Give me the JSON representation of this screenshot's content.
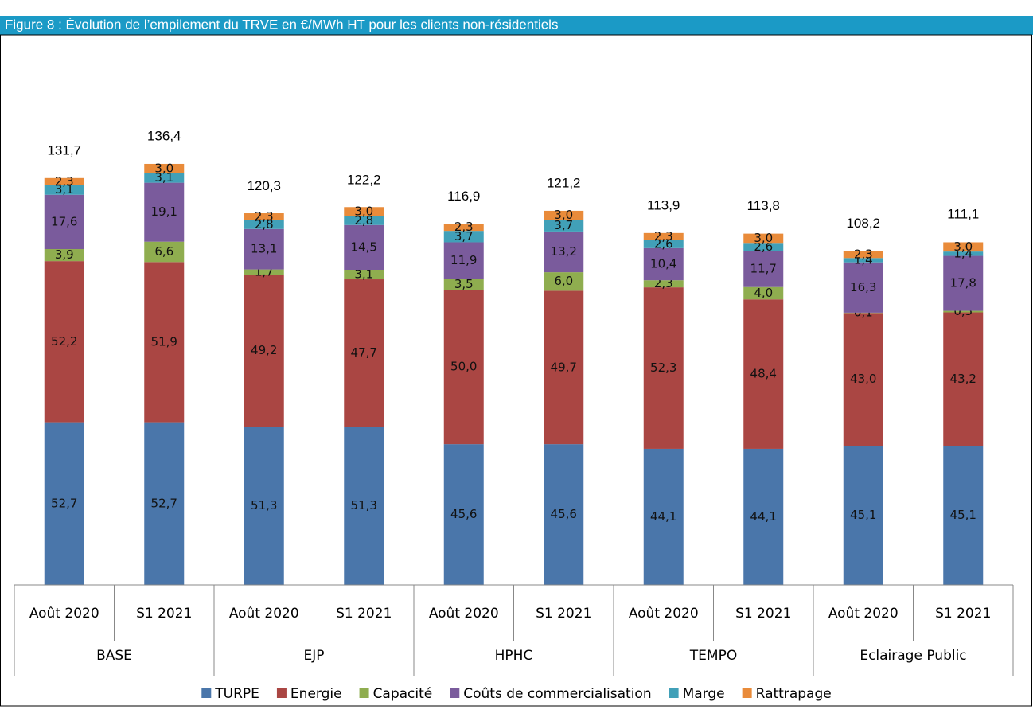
{
  "chart_data": {
    "type": "stacked_bar",
    "title": "Figure 8 : Évolution de l’empilement du TRVE en €/MWh HT pour les clients non-résidentiels",
    "categories": [
      "Août 2020",
      "S1 2021",
      "Août 2020",
      "S1 2021",
      "Août 2020",
      "S1 2021",
      "Août 2020",
      "S1 2021",
      "Août 2020",
      "S1 2021"
    ],
    "groups": [
      "BASE",
      "EJP",
      "HPHC",
      "TEMPO",
      "Eclairage Public"
    ],
    "ylim": [
      0,
      140
    ],
    "series": [
      {
        "name": "TURPE",
        "color": "#4a76aa",
        "values": [
          52.7,
          52.7,
          51.3,
          51.3,
          45.6,
          45.6,
          44.1,
          44.1,
          45.1,
          45.1
        ],
        "value_labels": [
          "52,7",
          "52,7",
          "51,3",
          "51,3",
          "45,6",
          "45,6",
          "44,1",
          "44,1",
          "45,1",
          "45,1"
        ]
      },
      {
        "name": "Energie",
        "color": "#aa4643",
        "values": [
          52.2,
          51.9,
          49.2,
          47.7,
          50.0,
          49.7,
          52.3,
          48.4,
          43.0,
          43.2
        ],
        "value_labels": [
          "52,2",
          "51,9",
          "49,2",
          "47,7",
          "50,0",
          "49,7",
          "52,3",
          "48,4",
          "43,0",
          "43,2"
        ]
      },
      {
        "name": "Capacité",
        "color": "#8fad4f",
        "values": [
          3.9,
          6.6,
          1.7,
          3.1,
          3.5,
          6.0,
          2.3,
          4.0,
          0.1,
          0.5
        ],
        "value_labels": [
          "3,9",
          "6,6",
          "1,7",
          "3,1",
          "3,5",
          "6,0",
          "2,3",
          "4,0",
          "0,1",
          "0,5"
        ]
      },
      {
        "name": "Coûts de commercialisation",
        "color": "#7a5b9c",
        "values": [
          17.6,
          19.1,
          13.1,
          14.5,
          11.9,
          13.2,
          10.4,
          11.7,
          16.3,
          17.8
        ],
        "value_labels": [
          "17,6",
          "19,1",
          "13,1",
          "14,5",
          "11,9",
          "13,2",
          "10,4",
          "11,7",
          "16,3",
          "17,8"
        ]
      },
      {
        "name": "Marge",
        "color": "#41a0b8",
        "values": [
          3.1,
          3.1,
          2.8,
          2.8,
          3.7,
          3.7,
          2.6,
          2.6,
          1.4,
          1.4
        ],
        "value_labels": [
          "3,1",
          "3,1",
          "2,8",
          "2,8",
          "3,7",
          "3,7",
          "2,6",
          "2,6",
          "1,4",
          "1,4"
        ]
      },
      {
        "name": "Rattrapage",
        "color": "#e98b3a",
        "values": [
          2.3,
          3.0,
          2.3,
          3.0,
          2.3,
          3.0,
          2.3,
          3.0,
          2.3,
          3.0
        ],
        "value_labels": [
          "2,3",
          "3,0",
          "2,3",
          "3,0",
          "2,3",
          "3,0",
          "2,3",
          "3,0",
          "2,3",
          "3,0"
        ]
      }
    ],
    "totals": {
      "values": [
        131.7,
        136.4,
        120.3,
        122.2,
        116.9,
        121.2,
        113.9,
        113.8,
        108.2,
        111.1
      ],
      "value_labels": [
        "131,7",
        "136,4",
        "120,3",
        "122,2",
        "116,9",
        "121,2",
        "113,9",
        "113,8",
        "108,2",
        "111,1"
      ]
    }
  }
}
